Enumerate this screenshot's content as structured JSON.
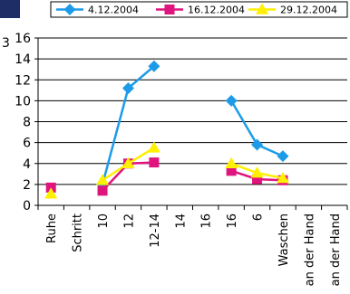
{
  "chart_data": {
    "type": "line",
    "title": "",
    "xlabel": "",
    "ylabel": "",
    "categories": [
      "Ruhe",
      "Schritt",
      "10",
      "12",
      "12-14",
      "14",
      "16",
      "16",
      "6",
      "Waschen",
      "an der Hand",
      "an der Hand"
    ],
    "ylim": [
      0,
      16
    ],
    "yticks": [
      0,
      2,
      4,
      6,
      8,
      10,
      12,
      14,
      16
    ],
    "grid": true,
    "legend_position": "top",
    "series": [
      {
        "name": "4.12.2004",
        "color": "#1e9be8",
        "marker": "diamond",
        "values": [
          null,
          null,
          2.0,
          11.2,
          13.3,
          null,
          null,
          10.0,
          5.8,
          4.7,
          null,
          null
        ]
      },
      {
        "name": "16.12.2004",
        "color": "#e0147e",
        "marker": "square",
        "values": [
          1.7,
          null,
          1.4,
          4.0,
          4.1,
          null,
          null,
          3.3,
          2.5,
          2.4,
          null,
          null
        ]
      },
      {
        "name": "29.12.2004",
        "color": "#ffef00",
        "marker": "triangle",
        "values": [
          1.1,
          null,
          2.4,
          4.0,
          5.5,
          null,
          null,
          4.0,
          3.1,
          2.6,
          null,
          null
        ]
      }
    ],
    "colors": {
      "gridline": "#000000",
      "axis": "#000000",
      "corner_badge": "#1f2d66"
    }
  },
  "page_fragment": {
    "left_label": "3"
  }
}
